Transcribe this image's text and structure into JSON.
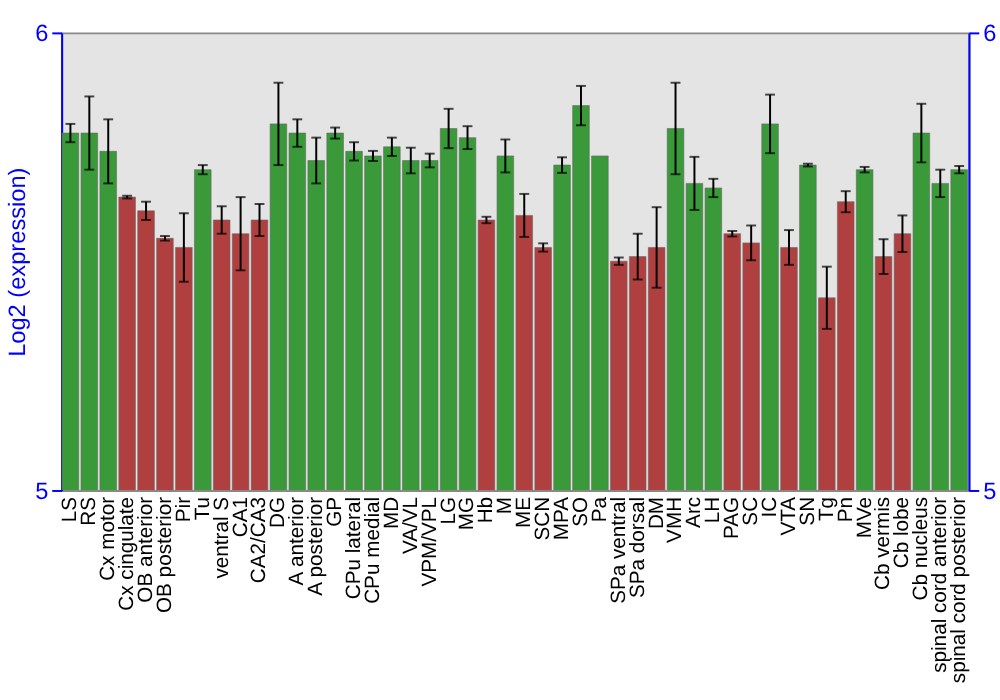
{
  "chart_data": {
    "type": "bar",
    "ylabel": "Log2 (expression)",
    "categories": [
      "LS",
      "RS",
      "Cx motor",
      "Cx cingulate",
      "OB anterior",
      "OB posterior",
      "Pir",
      "Tu",
      "ventral S",
      "CA1",
      "CA2/CA3",
      "DG",
      "A anterior",
      "A posterior",
      "GP",
      "CPu lateral",
      "CPu medial",
      "MD",
      "VA/VL",
      "VPM/VPL",
      "LG",
      "MG",
      "Hb",
      "M",
      "ME",
      "SCN",
      "MPA",
      "SO",
      "Pa",
      "SPa ventral",
      "SPa dorsal",
      "DM",
      "VMH",
      "Arc",
      "LH",
      "PAG",
      "SC",
      "IC",
      "VTA",
      "SN",
      "Tg",
      "Pn",
      "MVe",
      "Cb vermis",
      "Cb lobe",
      "Cb nucleus",
      "spinal cord anterior",
      "spinal cord posterior"
    ],
    "values": [
      5.78,
      5.78,
      5.74,
      5.64,
      5.61,
      5.55,
      5.53,
      5.7,
      5.59,
      5.56,
      5.59,
      5.8,
      5.78,
      5.72,
      5.78,
      5.74,
      5.73,
      5.75,
      5.72,
      5.72,
      5.79,
      5.77,
      5.59,
      5.73,
      5.6,
      5.53,
      5.71,
      5.84,
      5.73,
      5.5,
      5.51,
      5.53,
      5.79,
      5.67,
      5.66,
      5.56,
      5.54,
      5.8,
      5.53,
      5.71,
      5.42,
      5.63,
      5.7,
      5.51,
      5.56,
      5.78,
      5.67,
      5.7
    ],
    "errors": [
      0.02,
      0.08,
      0.07,
      0.003,
      0.02,
      0.005,
      0.075,
      0.01,
      0.03,
      0.08,
      0.035,
      0.09,
      0.03,
      0.05,
      0.012,
      0.02,
      0.011,
      0.02,
      0.028,
      0.015,
      0.043,
      0.025,
      0.007,
      0.036,
      0.047,
      0.009,
      0.017,
      0.043,
      null,
      0.008,
      0.05,
      0.088,
      0.1,
      0.058,
      0.02,
      0.006,
      0.038,
      0.064,
      0.038,
      0.003,
      0.068,
      0.023,
      0.006,
      0.038,
      0.04,
      0.064,
      0.03,
      0.008
    ],
    "colors": [
      "#3a9a3a",
      "#3a9a3a",
      "#3a9a3a",
      "#b04040",
      "#b04040",
      "#b04040",
      "#b04040",
      "#3a9a3a",
      "#b04040",
      "#b04040",
      "#b04040",
      "#3a9a3a",
      "#3a9a3a",
      "#3a9a3a",
      "#3a9a3a",
      "#3a9a3a",
      "#3a9a3a",
      "#3a9a3a",
      "#3a9a3a",
      "#3a9a3a",
      "#3a9a3a",
      "#3a9a3a",
      "#b04040",
      "#3a9a3a",
      "#b04040",
      "#b04040",
      "#3a9a3a",
      "#3a9a3a",
      "#3a9a3a",
      "#b04040",
      "#b04040",
      "#b04040",
      "#3a9a3a",
      "#3a9a3a",
      "#3a9a3a",
      "#b04040",
      "#b04040",
      "#3a9a3a",
      "#b04040",
      "#3a9a3a",
      "#b04040",
      "#b04040",
      "#3a9a3a",
      "#b04040",
      "#b04040",
      "#3a9a3a",
      "#3a9a3a",
      "#3a9a3a"
    ],
    "ylim": [
      5,
      6
    ],
    "yticks": [
      5,
      6
    ],
    "y2lim": [
      5,
      6
    ],
    "y2ticks": [
      5,
      6
    ],
    "grid": false
  }
}
